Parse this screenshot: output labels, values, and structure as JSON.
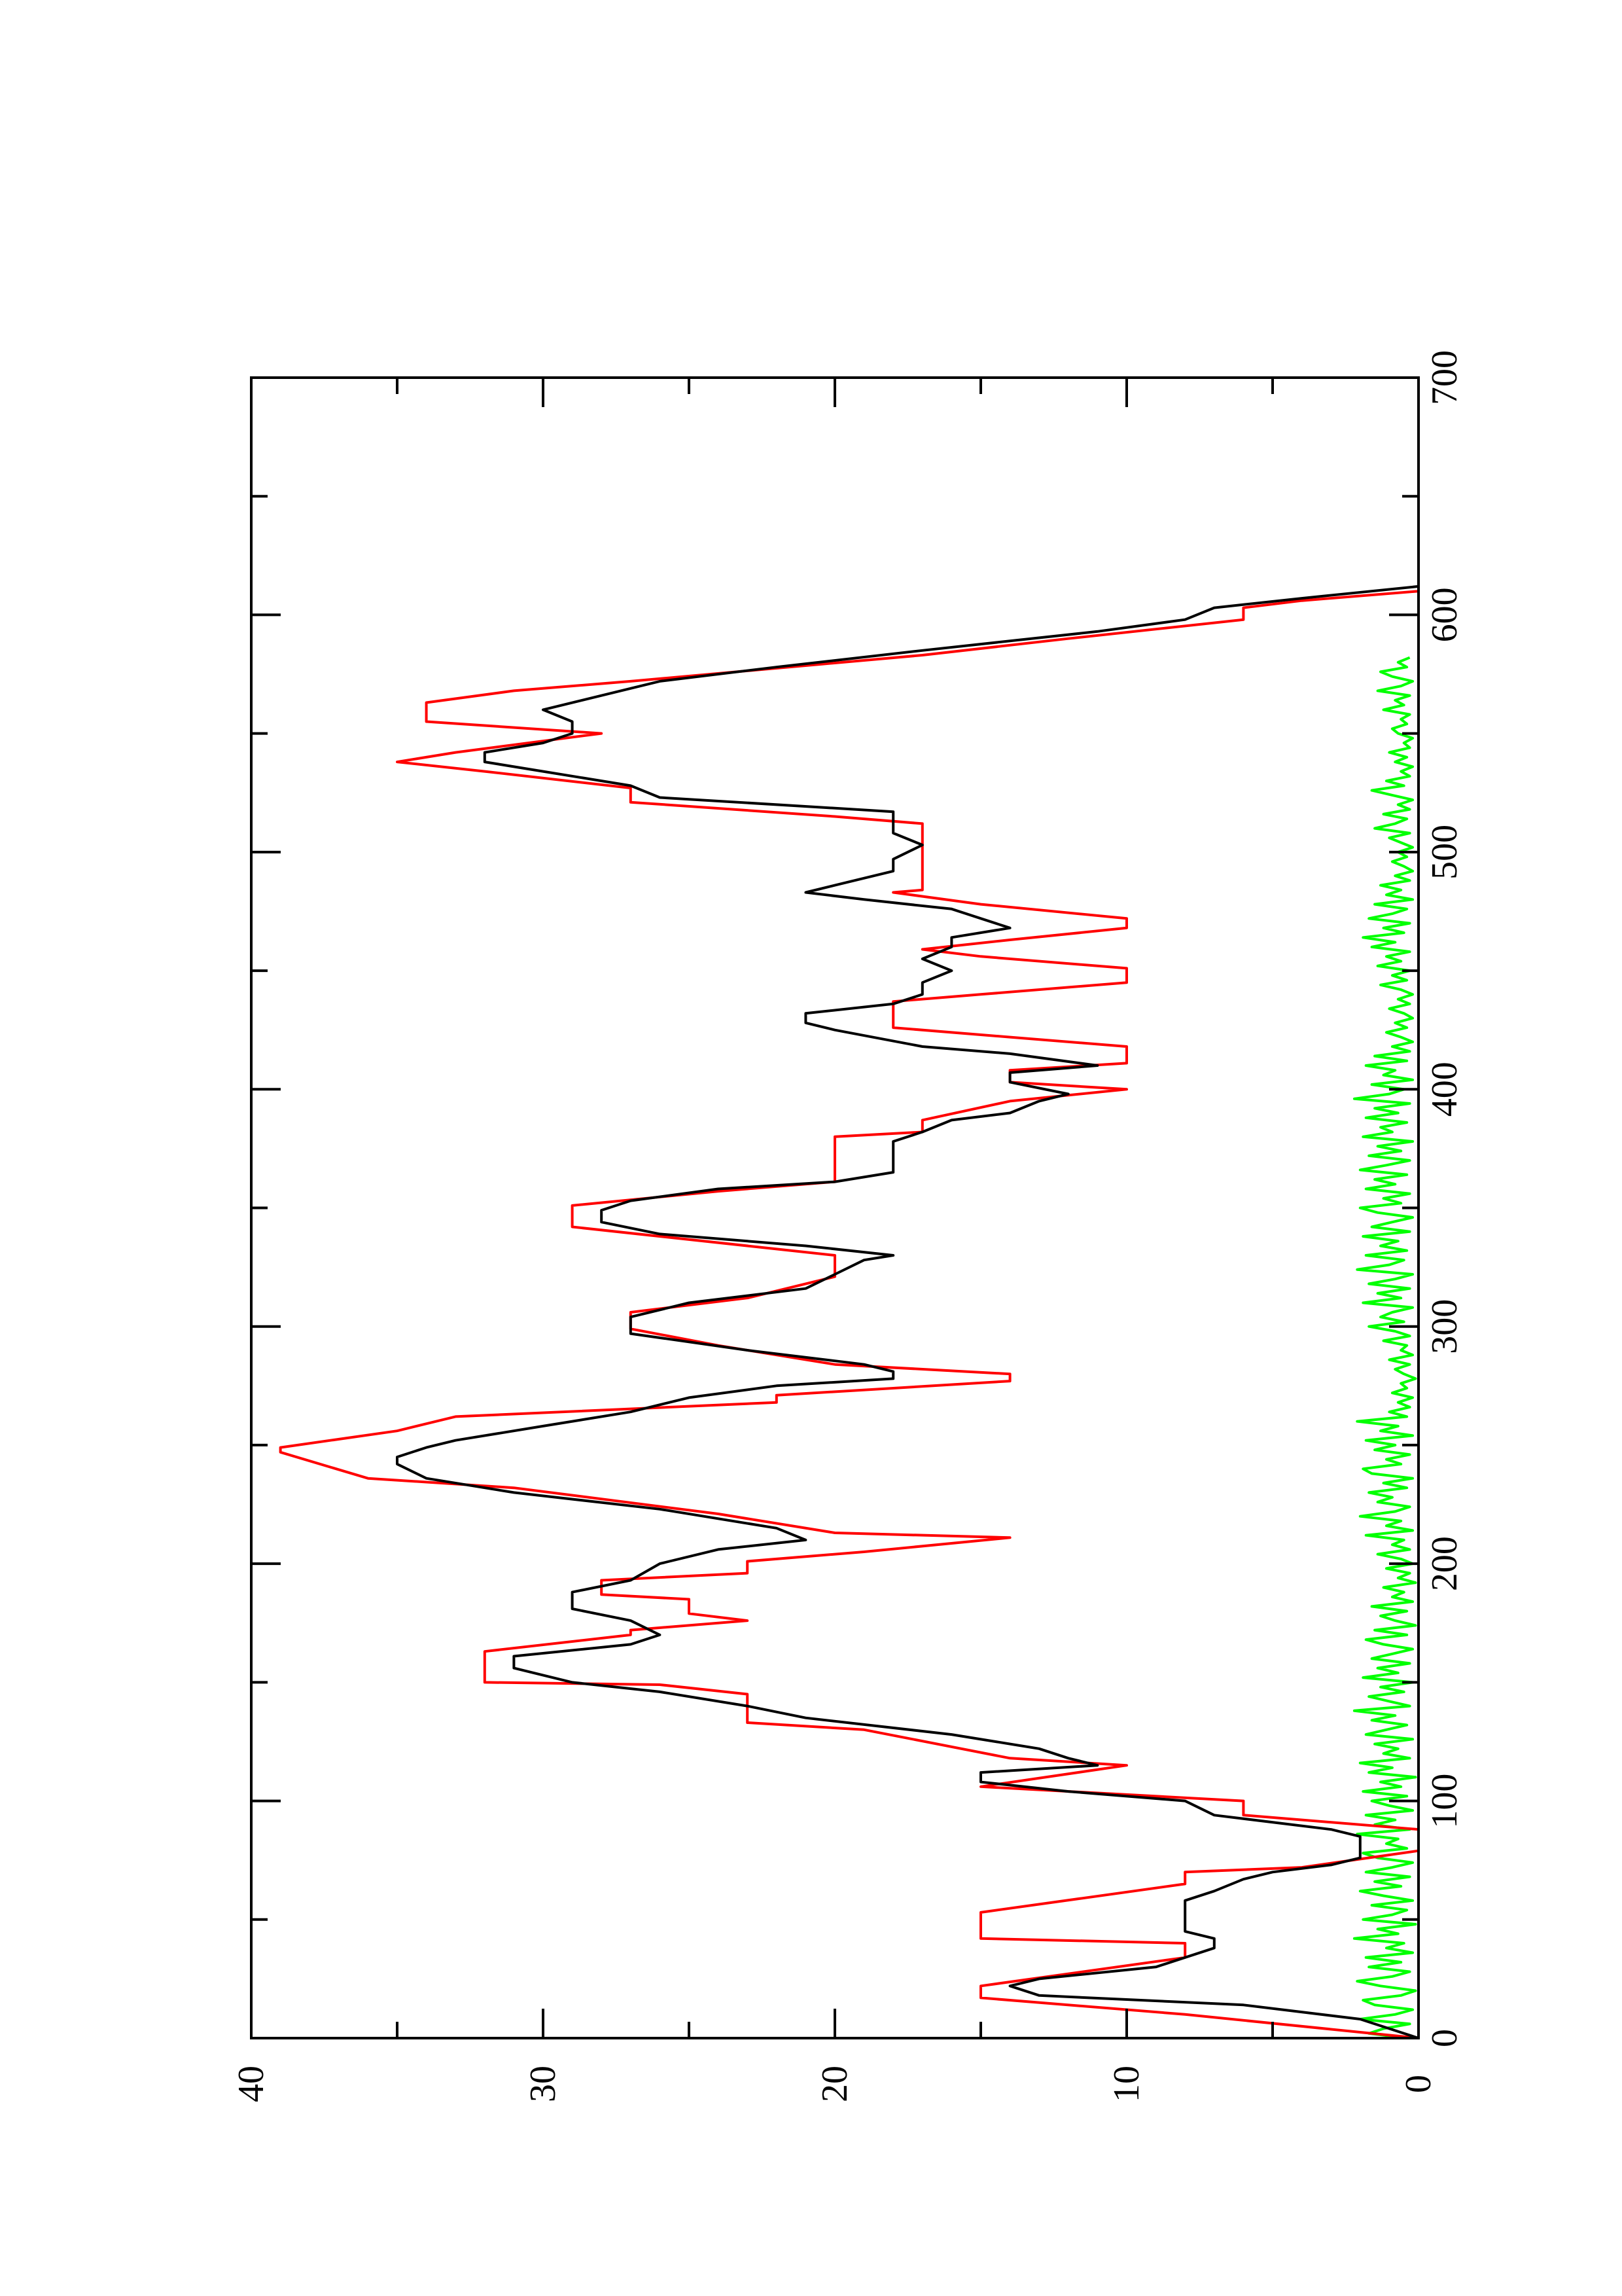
{
  "chart_data": {
    "type": "line",
    "orientation": "rotated 90° counter-clockwise (x axis runs along the right edge, y axis along the bottom)",
    "xlim": [
      0,
      700
    ],
    "ylim": [
      0,
      40
    ],
    "x_ticks": [
      "0",
      "100",
      "200",
      "300",
      "400",
      "500",
      "600",
      "700"
    ],
    "y_ticks": [
      "0",
      "10",
      "20",
      "30",
      "40"
    ],
    "grid": false,
    "series": [
      {
        "color": "#ff0000",
        "style": "stepped outline",
        "points": [
          [
            0,
            0
          ],
          [
            10,
            8
          ],
          [
            17,
            15
          ],
          [
            22,
            15
          ],
          [
            34,
            8
          ],
          [
            40,
            8
          ],
          [
            42,
            15
          ],
          [
            53,
            15
          ],
          [
            65,
            8
          ],
          [
            70,
            8
          ],
          [
            72,
            4
          ],
          [
            79,
            0
          ],
          [
            88,
            0
          ],
          [
            94,
            6
          ],
          [
            100,
            6
          ],
          [
            106,
            15
          ],
          [
            115,
            10
          ],
          [
            118,
            14
          ],
          [
            130,
            19
          ],
          [
            133,
            23
          ],
          [
            145,
            23
          ],
          [
            149,
            26
          ],
          [
            150,
            32
          ],
          [
            163,
            32
          ],
          [
            170,
            27
          ],
          [
            172,
            27
          ],
          [
            176,
            23
          ],
          [
            179,
            25
          ],
          [
            185,
            25
          ],
          [
            187,
            28
          ],
          [
            193,
            28
          ],
          [
            196,
            23
          ],
          [
            201,
            23
          ],
          [
            205,
            19
          ],
          [
            211,
            14
          ],
          [
            213,
            20
          ],
          [
            221,
            24
          ],
          [
            232,
            31
          ],
          [
            236,
            36
          ],
          [
            247,
            39
          ],
          [
            249,
            39
          ],
          [
            256,
            35
          ],
          [
            262,
            33
          ],
          [
            268,
            22
          ],
          [
            271,
            22
          ],
          [
            277,
            14
          ],
          [
            280,
            14
          ],
          [
            284,
            20
          ],
          [
            292,
            24
          ],
          [
            299,
            27
          ],
          [
            306,
            27
          ],
          [
            312,
            23
          ],
          [
            321,
            20
          ],
          [
            326,
            20
          ],
          [
            330,
            20
          ],
          [
            342,
            29
          ],
          [
            351,
            29
          ],
          [
            357,
            24
          ],
          [
            361,
            20
          ],
          [
            380,
            20
          ],
          [
            382,
            17
          ],
          [
            387,
            17
          ],
          [
            395,
            14
          ],
          [
            400,
            10
          ],
          [
            403,
            14
          ],
          [
            408,
            14
          ],
          [
            411,
            10
          ],
          [
            418,
            10
          ],
          [
            422,
            14
          ],
          [
            426,
            18
          ],
          [
            437,
            18
          ],
          [
            440,
            15
          ],
          [
            445,
            10
          ],
          [
            451,
            10
          ],
          [
            456,
            15
          ],
          [
            459,
            17
          ],
          [
            463,
            14
          ],
          [
            468,
            10
          ],
          [
            472,
            10
          ],
          [
            478,
            15
          ],
          [
            483,
            18
          ],
          [
            484,
            17
          ],
          [
            488,
            17
          ],
          [
            490,
            17
          ],
          [
            500,
            17
          ],
          [
            512,
            17
          ],
          [
            515,
            20
          ],
          [
            521,
            27
          ],
          [
            527,
            27
          ],
          [
            534,
            32
          ],
          [
            538,
            35
          ],
          [
            542,
            33
          ],
          [
            550,
            28
          ],
          [
            555,
            34
          ],
          [
            563,
            34
          ],
          [
            568,
            31
          ],
          [
            572,
            27
          ],
          [
            583,
            17
          ],
          [
            590,
            12
          ],
          [
            598,
            6
          ],
          [
            603,
            6
          ],
          [
            606,
            4
          ],
          [
            610,
            0
          ],
          [
            612,
            0
          ]
        ]
      },
      {
        "color": "#000000",
        "style": "line",
        "points": [
          [
            0,
            0
          ],
          [
            4,
            1
          ],
          [
            8,
            2
          ],
          [
            14,
            6
          ],
          [
            18,
            13
          ],
          [
            22,
            14
          ],
          [
            25,
            13
          ],
          [
            30,
            9
          ],
          [
            34,
            8
          ],
          [
            38,
            7
          ],
          [
            42,
            7
          ],
          [
            45,
            8
          ],
          [
            52,
            8
          ],
          [
            58,
            8
          ],
          [
            62,
            7
          ],
          [
            67,
            6
          ],
          [
            70,
            5
          ],
          [
            73,
            3
          ],
          [
            76,
            2
          ],
          [
            80,
            2
          ],
          [
            85,
            2
          ],
          [
            88,
            3
          ],
          [
            94,
            7
          ],
          [
            100,
            8
          ],
          [
            104,
            12
          ],
          [
            108,
            15
          ],
          [
            112,
            15
          ],
          [
            115,
            11
          ],
          [
            118,
            12
          ],
          [
            122,
            13
          ],
          [
            128,
            16
          ],
          [
            135,
            21
          ],
          [
            140,
            23
          ],
          [
            146,
            26
          ],
          [
            150,
            29
          ],
          [
            156,
            31
          ],
          [
            161,
            31
          ],
          [
            166,
            27
          ],
          [
            170,
            26
          ],
          [
            176,
            27
          ],
          [
            181,
            29
          ],
          [
            188,
            29
          ],
          [
            193,
            27
          ],
          [
            200,
            26
          ],
          [
            206,
            24
          ],
          [
            210,
            21
          ],
          [
            215,
            22
          ],
          [
            223,
            26
          ],
          [
            230,
            31
          ],
          [
            236,
            34
          ],
          [
            242,
            35
          ],
          [
            245,
            35
          ],
          [
            249,
            34
          ],
          [
            252,
            33
          ],
          [
            258,
            30
          ],
          [
            264,
            27
          ],
          [
            270,
            25
          ],
          [
            275,
            22
          ],
          [
            278,
            18
          ],
          [
            281,
            18
          ],
          [
            284,
            19
          ],
          [
            290,
            23
          ],
          [
            297,
            27
          ],
          [
            304,
            27
          ],
          [
            310,
            25
          ],
          [
            316,
            21
          ],
          [
            322,
            20
          ],
          [
            328,
            19
          ],
          [
            330,
            18
          ],
          [
            334,
            21
          ],
          [
            339,
            26
          ],
          [
            344,
            28
          ],
          [
            349,
            28
          ],
          [
            353,
            27
          ],
          [
            358,
            24
          ],
          [
            361,
            20
          ],
          [
            365,
            18
          ],
          [
            370,
            18
          ],
          [
            378,
            18
          ],
          [
            382,
            17
          ],
          [
            387,
            16
          ],
          [
            390,
            14
          ],
          [
            395,
            13
          ],
          [
            398,
            12
          ],
          [
            403,
            14
          ],
          [
            407,
            14
          ],
          [
            410,
            11
          ],
          [
            415,
            14
          ],
          [
            418,
            17
          ],
          [
            425,
            20
          ],
          [
            428,
            21
          ],
          [
            432,
            21
          ],
          [
            436,
            18
          ],
          [
            440,
            17
          ],
          [
            445,
            17
          ],
          [
            450,
            16
          ],
          [
            455,
            17
          ],
          [
            460,
            16
          ],
          [
            464,
            16
          ],
          [
            468,
            14
          ],
          [
            472,
            15
          ],
          [
            476,
            16
          ],
          [
            480,
            19
          ],
          [
            483,
            21
          ],
          [
            486,
            20
          ],
          [
            492,
            18
          ],
          [
            497,
            18
          ],
          [
            503,
            17
          ],
          [
            508,
            18
          ],
          [
            512,
            18
          ],
          [
            517,
            18
          ],
          [
            523,
            26
          ],
          [
            528,
            27
          ],
          [
            534,
            30
          ],
          [
            538,
            32
          ],
          [
            542,
            32
          ],
          [
            546,
            30
          ],
          [
            550,
            29
          ],
          [
            555,
            29
          ],
          [
            560,
            30
          ],
          [
            566,
            28
          ],
          [
            572,
            26
          ],
          [
            578,
            22
          ],
          [
            585,
            17
          ],
          [
            593,
            11
          ],
          [
            598,
            8
          ],
          [
            603,
            7
          ],
          [
            607,
            4
          ],
          [
            612,
            0
          ]
        ]
      },
      {
        "color": "#00ff00",
        "style": "noisy line near zero",
        "x_start": 0,
        "x_step": 2,
        "values": [
          0.4,
          1.7,
          1.2,
          0.3,
          2.0,
          0.8,
          0.2,
          1.5,
          1.9,
          0.6,
          0.1,
          1.3,
          2.1,
          0.9,
          0.3,
          1.7,
          0.6,
          1.8,
          0.2,
          1.1,
          0.5,
          2.2,
          0.7,
          1.4,
          0.1,
          1.9,
          0.9,
          0.4,
          1.6,
          0.2,
          1.2,
          2.0,
          0.6,
          1.5,
          0.3,
          1.8,
          0.9,
          0.2,
          1.4,
          1.9,
          0.4,
          1.1,
          0.7,
          2.1,
          0.3,
          1.5,
          0.8,
          1.8,
          0.2,
          1.0,
          1.6,
          0.4,
          1.9,
          0.6,
          1.3,
          0.1,
          1.7,
          0.9,
          2.0,
          0.3,
          1.2,
          0.7,
          1.5,
          0.2,
          1.8,
          1.1,
          0.4,
          1.6,
          0.8,
          2.2,
          0.3,
          1.0,
          1.7,
          0.5,
          1.3,
          0.2,
          1.9,
          0.7,
          1.4,
          0.3,
          1.6,
          0.9,
          0.2,
          1.2,
          1.8,
          0.4,
          1.5,
          0.1,
          0.8,
          1.3,
          0.4,
          1.6,
          0.2,
          0.9,
          0.5,
          1.2,
          0.1,
          0.7,
          0.3,
          1.1,
          0.2,
          0.6,
          1.4,
          0.3,
          0.9,
          0.5,
          1.8,
          0.2,
          1.1,
          0.6,
          2.0,
          0.8,
          0.3,
          1.4,
          0.9,
          1.7,
          0.4,
          1.2,
          0.2,
          1.6,
          1.9,
          0.6,
          1.1,
          0.3,
          1.5,
          0.8,
          1.8,
          0.2,
          1.3,
          0.7,
          2.1,
          0.4,
          1.0,
          0.3,
          0.7,
          0.2,
          0.9,
          0.4,
          0.6,
          0.1,
          0.5,
          0.8,
          0.3,
          1.0,
          0.2,
          0.6,
          0.4,
          1.2,
          0.3,
          0.8,
          1.7,
          0.5,
          1.3,
          0.9,
          0.2,
          1.9,
          0.6,
          1.4,
          0.3,
          1.7,
          0.8,
          0.2,
          2.1,
          1.0,
          0.5,
          1.8,
          0.4,
          1.3,
          0.7,
          1.9,
          0.3,
          1.6,
          0.9,
          0.2,
          1.4,
          2.0,
          0.6,
          1.2,
          0.3,
          1.8,
          0.8,
          1.5,
          0.4,
          2.0,
          1.1,
          0.3,
          1.7,
          0.6,
          1.4,
          0.2,
          1.9,
          0.9,
          1.3,
          0.4,
          1.8,
          0.7,
          1.5,
          0.3,
          2.2,
          1.0,
          0.5,
          1.6,
          0.2,
          1.2,
          0.8,
          1.8,
          0.4,
          1.5,
          0.3,
          0.9,
          0.2,
          0.6,
          1.1,
          0.4,
          0.8,
          0.2,
          0.5,
          1.0,
          0.3,
          0.7,
          0.2,
          0.6,
          1.3,
          0.4,
          0.9,
          0.3,
          1.4,
          0.6,
          1.1,
          0.3,
          1.6,
          0.8,
          1.9,
          0.5,
          1.2,
          0.3,
          1.7,
          0.9,
          0.4,
          1.5,
          0.2,
          1.1,
          0.6,
          1.3,
          0.3,
          0.8,
          0.2,
          0.5,
          0.9,
          0.4,
          0.7,
          0.2,
          0.6,
          1.0,
          0.3,
          1.5,
          0.8,
          0.4,
          1.2,
          0.3,
          0.7,
          0.2,
          0.9,
          1.6,
          0.5,
          1.1,
          0.3,
          0.6,
          0.2,
          0.8,
          0.4,
          1.0,
          0.3,
          0.5,
          0.2,
          0.7,
          0.9,
          0.4,
          0.6,
          0.3,
          1.2,
          0.5,
          0.8,
          0.3,
          1.4,
          0.6,
          0.2,
          0.9,
          1.3,
          0.4,
          0.7,
          0.3
        ]
      }
    ],
    "title": "",
    "xlabel": "",
    "ylabel": ""
  }
}
